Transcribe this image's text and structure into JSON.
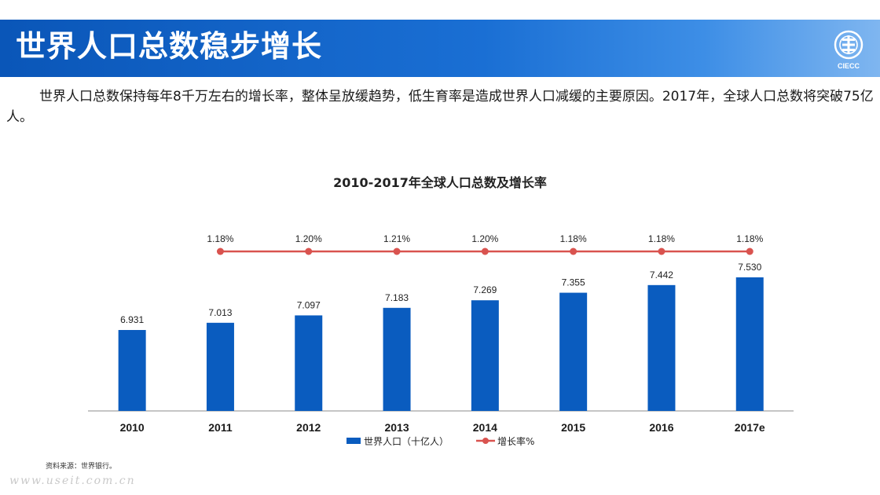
{
  "slide": {
    "title": "世界人口总数稳步增长",
    "logo_text": "CIECC",
    "intro": "世界人口总数保持每年8千万左右的增长率，整体呈放缓趋势，低生育率是造成世界人口减缓的主要原因。2017年，全球人口总数将突破75亿人。",
    "source": "资料来源：世界银行。",
    "watermark": "www.useit.com.cn"
  },
  "colors": {
    "banner": "#1565c8",
    "bar": "#0a5cbf",
    "line": "#d9534f"
  },
  "chart_data": {
    "type": "bar",
    "title": "2010-2017年全球人口总数及增长率",
    "categories": [
      "2010",
      "2011",
      "2012",
      "2013",
      "2014",
      "2015",
      "2016",
      "2017e"
    ],
    "series": [
      {
        "name": "世界人口（十亿人）",
        "type": "bar",
        "values": [
          6.931,
          7.013,
          7.097,
          7.183,
          7.269,
          7.355,
          7.442,
          7.53
        ],
        "labels": [
          "6.931",
          "7.013",
          "7.097",
          "7.183",
          "7.269",
          "7.355",
          "7.442",
          "7.530"
        ]
      },
      {
        "name": "增长率%",
        "type": "line",
        "values": [
          null,
          1.18,
          1.2,
          1.21,
          1.2,
          1.18,
          1.18,
          1.18
        ],
        "labels": [
          null,
          "1.18%",
          "1.20%",
          "1.21%",
          "1.20%",
          "1.18%",
          "1.18%",
          "1.18%"
        ]
      }
    ],
    "legend": [
      "世界人口（十亿人）",
      "增长率%"
    ],
    "legend_position": "bottom"
  }
}
